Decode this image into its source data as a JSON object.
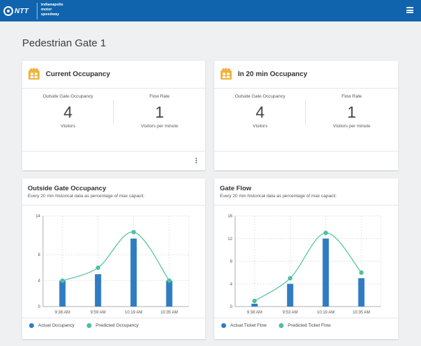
{
  "header": {
    "logo_text": "NTT",
    "brand_lines": [
      "indianapolis",
      "motor",
      "speedway"
    ]
  },
  "page": {
    "title": "Pedestrian Gate 1"
  },
  "cards": [
    {
      "title": "Current Occupancy",
      "icon": "people-group-icon",
      "metrics": [
        {
          "label": "Outside Gate Occupancy",
          "value": "4",
          "unit": "Visitors"
        },
        {
          "label": "Flow Rate",
          "value": "1",
          "unit": "Visitors per minute"
        }
      ]
    },
    {
      "title": "In 20 min Occupancy",
      "icon": "people-group-icon",
      "metrics": [
        {
          "label": "Outside Gate Occupancy",
          "value": "4",
          "unit": "Visitors"
        },
        {
          "label": "Flow Rate",
          "value": "1",
          "unit": "Visitors per minute"
        }
      ]
    }
  ],
  "charts": [
    {
      "title": "Outside Gate Occupancy",
      "subtitle": "Every 20 min historical data as percentage of max capacit:"
    },
    {
      "title": "Gate Flow",
      "subtitle": "Every 20 min historical data as percentage of max capacit:"
    }
  ],
  "colors": {
    "header": "#0f64ad",
    "bar": "#2f7cc3",
    "predicted": "#4fbf9f"
  },
  "chart_data": [
    {
      "type": "bar",
      "categories": [
        "9:38 AM",
        "9:59 AM",
        "10:19 AM",
        "10:35 AM"
      ],
      "ylim": [
        0,
        14
      ],
      "yticks": [
        0,
        4,
        8,
        14
      ],
      "grid": true,
      "legend_position": "bottom",
      "series": [
        {
          "name": "Actual Occupancy",
          "kind": "bar",
          "values": [
            4,
            5,
            10.5,
            4
          ]
        },
        {
          "name": "Predicted Occupancy",
          "kind": "line",
          "values": [
            4,
            6,
            11.5,
            4
          ]
        }
      ]
    },
    {
      "type": "bar",
      "categories": [
        "9:38 AM",
        "9:53 AM",
        "10:19 AM",
        "10:35 AM"
      ],
      "ylim": [
        0,
        16
      ],
      "yticks": [
        0,
        4,
        8,
        12,
        16
      ],
      "grid": true,
      "legend_position": "bottom",
      "series": [
        {
          "name": "Actual Ticket Flow",
          "kind": "bar",
          "values": [
            0.5,
            4,
            12,
            5
          ]
        },
        {
          "name": "Predicted Ticket Flow",
          "kind": "line",
          "values": [
            1,
            5,
            13,
            6
          ]
        }
      ]
    }
  ]
}
